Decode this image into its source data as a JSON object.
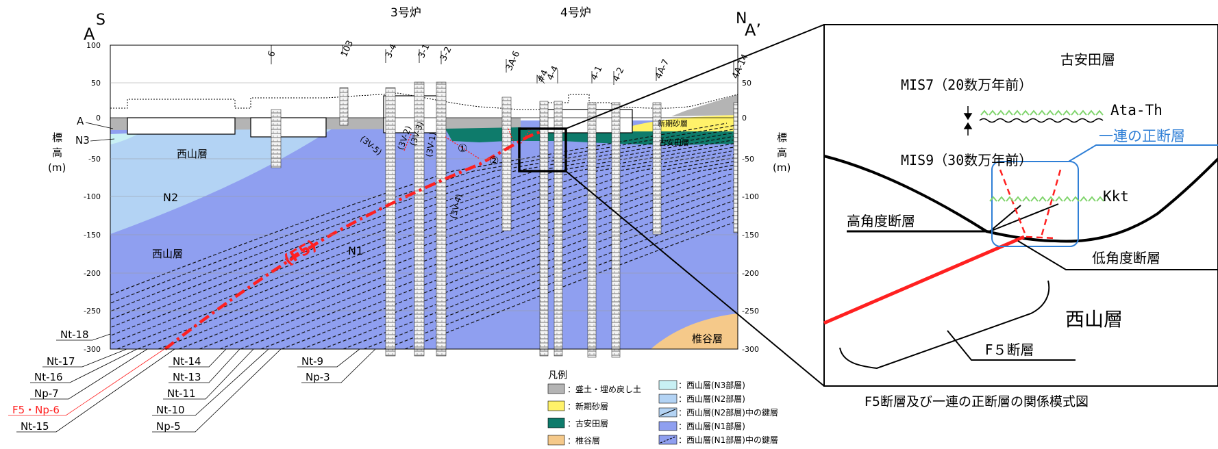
{
  "section": {
    "left_end_top": "S",
    "left_end": "A",
    "right_end_top": "N",
    "right_end": "A’",
    "unit3": "3号炉",
    "unit4": "4号炉",
    "elev_left": [
      "標",
      "高",
      "(m)"
    ],
    "elev_right": [
      "標",
      "高",
      "(m)"
    ],
    "y_ticks": [
      "100",
      "50",
      "0",
      "-50",
      "-100",
      "-150",
      "-200",
      "-250",
      "-300"
    ],
    "boreholes": [
      "6",
      "103",
      "3-4",
      "3-1",
      "3-2",
      "3A-6",
      "#4",
      "4-4",
      "4-1",
      "4-2",
      "4A-7",
      "4A-14"
    ],
    "cover_labels": [
      "A",
      "N3"
    ],
    "formation_labels": [
      "西山層",
      "N2",
      "西山層",
      "N1",
      "新期砂層",
      "古安田層",
      "椎谷層"
    ],
    "fault_labels": [
      "(3V-5)",
      "(3V-2)",
      "(3V-3)",
      "(3V-1)",
      "(3V-4)",
      "①",
      "②"
    ],
    "f5_label": "(F5)",
    "key_beds_left": [
      "Nt-18",
      "Nt-17",
      "Nt-16",
      "Np-7",
      "F5・Np-6",
      "Nt-15"
    ],
    "key_beds_mid": [
      "Nt-14",
      "Nt-13",
      "Nt-11",
      "Nt-10",
      "Np-5"
    ],
    "key_beds_right": [
      "Nt-9",
      "Np-3"
    ]
  },
  "legend": {
    "title": "凡例",
    "items": [
      {
        "label": "：盛土・埋め戻し土",
        "color": "#b4b4b4"
      },
      {
        "label": "：新期砂層",
        "color": "#fff26a"
      },
      {
        "label": "：古安田層",
        "color": "#0e7b6b"
      },
      {
        "label": "：椎谷層",
        "color": "#f5c98a"
      },
      {
        "label": "：西山層(N3部層)",
        "color": "#c8f0f4"
      },
      {
        "label": "：西山層(N2部層)",
        "color": "#b3d3f4"
      },
      {
        "label": "：西山層(N2部層)中の鍵層",
        "color": "#b3d3f4"
      },
      {
        "label": "：西山層(N1部層)",
        "color": "#8f9ff0"
      },
      {
        "label": "：西山層(N1部層)中の鍵層",
        "color": "#8f9ff0"
      }
    ]
  },
  "inset": {
    "kouanda": "古安田層",
    "mis7": "MIS7（20数万年前）",
    "ata": "Ata-Th",
    "normal_faults": "一連の正断層",
    "mis9": "MIS9（30数万年前）",
    "kkt": "Kkt",
    "high_angle": "高角度断層",
    "low_angle": "低角度断層",
    "nishiyama": "西山層",
    "f5_fault": "F５断層",
    "caption": "F5断層及び一連の正断層の関係模式図"
  },
  "colors": {
    "fill": "#b4b4b4",
    "sand": "#fff26a",
    "kouanda": "#0e7b6b",
    "shiiya": "#f5c98a",
    "n3": "#c8f0f4",
    "n2": "#b3d3f4",
    "n1": "#8f9ff0",
    "fault": "#ff2020",
    "blue_box": "#2f7fd6",
    "ash": "#7fd46b"
  }
}
